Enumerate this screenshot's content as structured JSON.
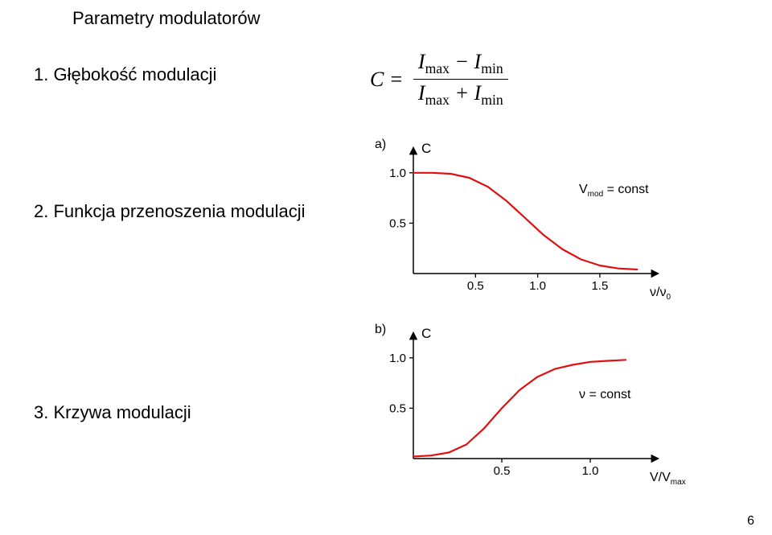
{
  "title": "Parametry modulatorów",
  "items": {
    "i1": "1. Głębokość modulacji",
    "i2": "2. Funkcja przenoszenia modulacji",
    "i3": "3. Krzywa modulacji"
  },
  "formula": {
    "lhs": "C =",
    "num": "I_max − I_min",
    "den": "I_max + I_min",
    "num_html": "I<sub>max</sub> − I<sub>min</sub>",
    "den_html": "I<sub>max</sub> + I<sub>min</sub>"
  },
  "chart_a": {
    "panel_label": "a)",
    "y_label": "C",
    "x_label": "ν/ν",
    "x_label_sub": "0",
    "annotation": "V_mod = const",
    "annotation_sub": "mod",
    "annotation_html": "V<tspan baseline-shift=\"sub\" font-size=\"10\">mod</tspan> = const",
    "y_ticks": [
      {
        "v": 1.0,
        "label": "1.0"
      },
      {
        "v": 0.5,
        "label": "0.5"
      }
    ],
    "x_ticks": [
      {
        "v": 0.5,
        "label": "0.5"
      },
      {
        "v": 1.0,
        "label": "1.0"
      },
      {
        "v": 1.5,
        "label": "1.5"
      }
    ],
    "xlim": [
      0,
      1.85
    ],
    "ylim": [
      0,
      1.15
    ],
    "curve": [
      {
        "x": 0.0,
        "y": 1.0
      },
      {
        "x": 0.15,
        "y": 1.0
      },
      {
        "x": 0.3,
        "y": 0.99
      },
      {
        "x": 0.45,
        "y": 0.95
      },
      {
        "x": 0.6,
        "y": 0.86
      },
      {
        "x": 0.75,
        "y": 0.72
      },
      {
        "x": 0.9,
        "y": 0.55
      },
      {
        "x": 1.05,
        "y": 0.38
      },
      {
        "x": 1.2,
        "y": 0.24
      },
      {
        "x": 1.35,
        "y": 0.14
      },
      {
        "x": 1.5,
        "y": 0.08
      },
      {
        "x": 1.65,
        "y": 0.05
      },
      {
        "x": 1.8,
        "y": 0.04
      }
    ],
    "colors": {
      "axis": "#000000",
      "curve": "#e01010",
      "text": "#000000",
      "bg": "#ffffff"
    },
    "stroke_width": 2.2
  },
  "chart_b": {
    "panel_label": "b)",
    "y_label": "C",
    "x_label": "V/V",
    "x_label_sub": "max",
    "annotation": "ν = const",
    "y_ticks": [
      {
        "v": 1.0,
        "label": "1.0"
      },
      {
        "v": 0.5,
        "label": "0.5"
      }
    ],
    "x_ticks": [
      {
        "v": 0.5,
        "label": "0.5"
      },
      {
        "v": 1.0,
        "label": "1.0"
      }
    ],
    "xlim": [
      0,
      1.3
    ],
    "ylim": [
      0,
      1.15
    ],
    "curve": [
      {
        "x": 0.0,
        "y": 0.02
      },
      {
        "x": 0.1,
        "y": 0.03
      },
      {
        "x": 0.2,
        "y": 0.06
      },
      {
        "x": 0.3,
        "y": 0.14
      },
      {
        "x": 0.4,
        "y": 0.3
      },
      {
        "x": 0.5,
        "y": 0.5
      },
      {
        "x": 0.6,
        "y": 0.68
      },
      {
        "x": 0.7,
        "y": 0.81
      },
      {
        "x": 0.8,
        "y": 0.89
      },
      {
        "x": 0.9,
        "y": 0.93
      },
      {
        "x": 1.0,
        "y": 0.96
      },
      {
        "x": 1.1,
        "y": 0.97
      },
      {
        "x": 1.2,
        "y": 0.98
      }
    ],
    "colors": {
      "axis": "#000000",
      "curve": "#e01010",
      "text": "#000000",
      "bg": "#ffffff"
    },
    "stroke_width": 2.2
  },
  "page_number": "6"
}
